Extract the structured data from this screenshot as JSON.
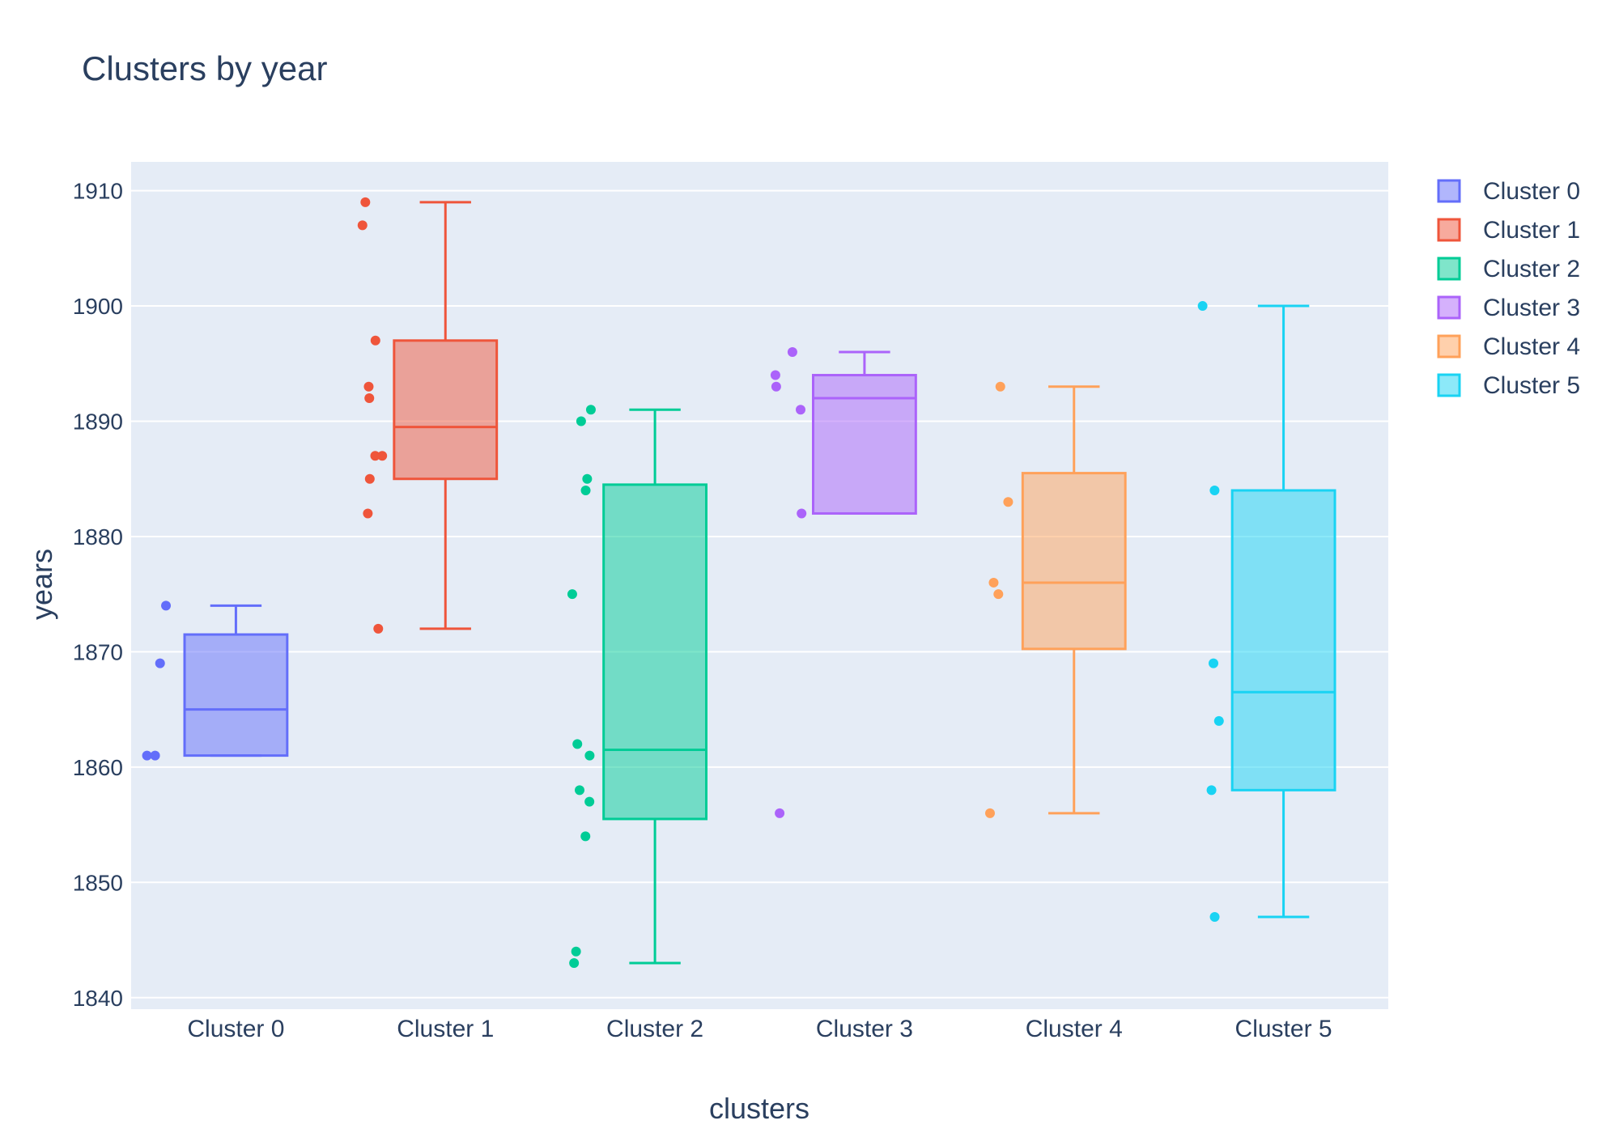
{
  "chart_data": {
    "type": "box",
    "title": "Clusters by year",
    "xlabel": "clusters",
    "ylabel": "years",
    "ylim": [
      1839,
      1912.5
    ],
    "yticks": [
      1840,
      1850,
      1860,
      1870,
      1880,
      1890,
      1900,
      1910
    ],
    "ytick_labels": [
      "1840",
      "1850",
      "1860",
      "1870",
      "1880",
      "1890",
      "1900",
      "1910"
    ],
    "categories": [
      "Cluster 0",
      "Cluster 1",
      "Cluster 2",
      "Cluster 3",
      "Cluster 4",
      "Cluster 5"
    ],
    "grid": true,
    "legend_position": "top-right",
    "background": "#e5ecf6",
    "text_color": "#2a3f5f",
    "series": [
      {
        "name": "Cluster 0",
        "color": "#636efa",
        "box": {
          "q1": 1861,
          "median": 1865,
          "q3": 1871.5,
          "lower_whisker": 1861,
          "upper_whisker": 1874
        },
        "points": [
          1874,
          1869,
          1861,
          1861
        ]
      },
      {
        "name": "Cluster 1",
        "color": "#ef553b",
        "box": {
          "q1": 1885,
          "median": 1889.5,
          "q3": 1897,
          "lower_whisker": 1872,
          "upper_whisker": 1909
        },
        "points": [
          1909,
          1907,
          1897,
          1893,
          1892,
          1887,
          1887,
          1885,
          1882,
          1872
        ]
      },
      {
        "name": "Cluster 2",
        "color": "#00cc96",
        "box": {
          "q1": 1855.5,
          "median": 1861.5,
          "q3": 1884.5,
          "lower_whisker": 1843,
          "upper_whisker": 1891
        },
        "points": [
          1891,
          1890,
          1885,
          1884,
          1875,
          1862,
          1861,
          1858,
          1857,
          1854,
          1844,
          1843
        ]
      },
      {
        "name": "Cluster 3",
        "color": "#ab63fa",
        "box": {
          "q1": 1882,
          "median": 1892,
          "q3": 1894,
          "lower_whisker": 1882,
          "upper_whisker": 1896
        },
        "points": [
          1896,
          1894,
          1893,
          1891,
          1882,
          1856
        ]
      },
      {
        "name": "Cluster 4",
        "color": "#ffa15a",
        "box": {
          "q1": 1870.25,
          "median": 1876,
          "q3": 1885.5,
          "lower_whisker": 1856,
          "upper_whisker": 1893
        },
        "points": [
          1893,
          1883,
          1876,
          1875,
          1856
        ]
      },
      {
        "name": "Cluster 5",
        "color": "#19d3f3",
        "box": {
          "q1": 1858,
          "median": 1866.5,
          "q3": 1884,
          "lower_whisker": 1847,
          "upper_whisker": 1900
        },
        "points": [
          1900,
          1884,
          1869,
          1864,
          1858,
          1847
        ]
      }
    ]
  }
}
